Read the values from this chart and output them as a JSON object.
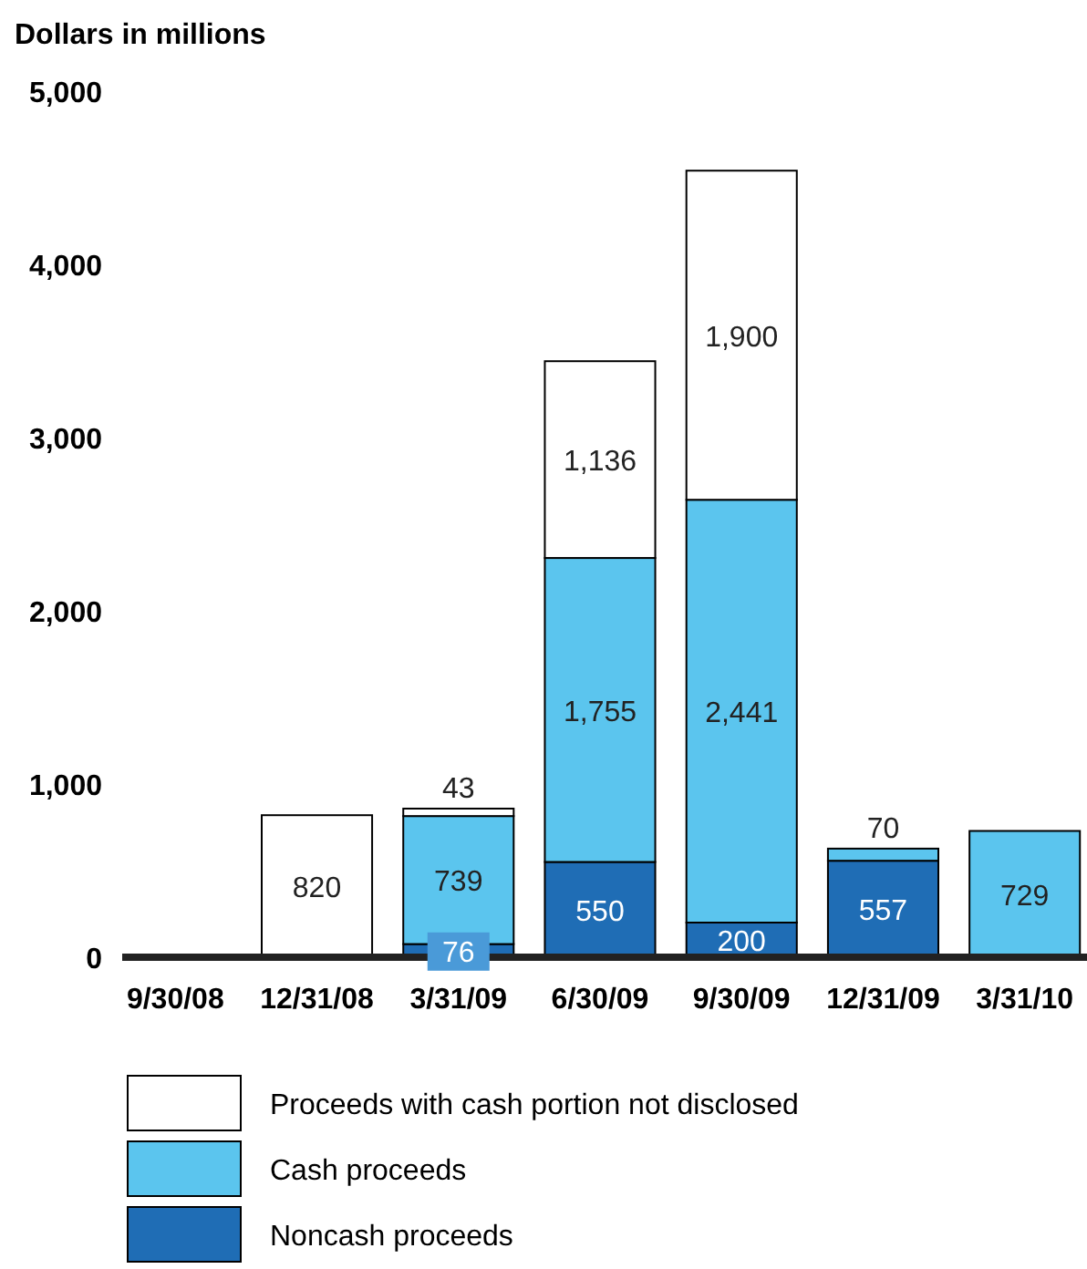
{
  "chart_data": {
    "type": "bar",
    "stacked": true,
    "ylabel": "Dollars in millions",
    "categories": [
      "9/30/08",
      "12/31/08",
      "3/31/09",
      "6/30/09",
      "9/30/09",
      "12/31/09",
      "3/31/10"
    ],
    "series": [
      {
        "name": "Noncash proceeds",
        "color": "#1f6db5",
        "values": [
          null,
          null,
          76,
          550,
          200,
          557,
          null
        ],
        "value_labels": [
          null,
          null,
          "76",
          "550",
          "200",
          "557",
          null
        ]
      },
      {
        "name": "Cash proceeds",
        "color": "#5bc5ee",
        "values": [
          null,
          null,
          739,
          1755,
          2441,
          70,
          729
        ],
        "value_labels": [
          null,
          null,
          "739",
          "1,755",
          "2,441",
          "70",
          "729"
        ]
      },
      {
        "name": "Proceeds with cash portion not disclosed",
        "color": "#ffffff",
        "values": [
          null,
          820,
          43,
          1136,
          1900,
          null,
          null
        ],
        "value_labels": [
          null,
          "820",
          "43",
          "1,136",
          "1,900",
          null,
          null
        ]
      }
    ],
    "ylim": [
      0,
      5000
    ],
    "yticks": [
      0,
      {
        "value": 1000,
        "label": "1,000"
      },
      {
        "value": 2000,
        "label": "2,000"
      },
      {
        "value": 3000,
        "label": "3,000"
      },
      {
        "value": 4000,
        "label": "4,000"
      },
      {
        "value": 5000,
        "label": "5,000"
      }
    ],
    "legend": "bottom",
    "grid": false
  }
}
